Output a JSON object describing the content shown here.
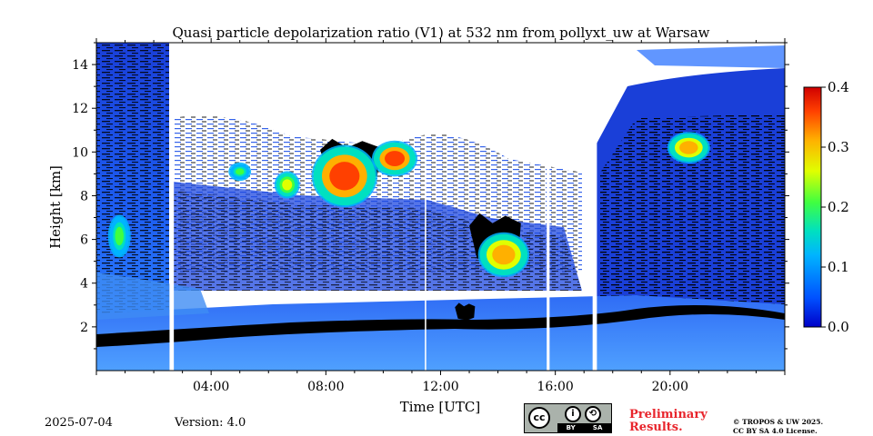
{
  "chart_data": {
    "type": "heatmap",
    "title": "Quasi particle depolarization ratio (V1) at 532 nm from pollyxt_uw at Warsaw",
    "xlabel": "Time [UTC]",
    "ylabel": "Height [km]",
    "xlim": [
      0,
      24
    ],
    "ylim": [
      0,
      15
    ],
    "x_ticks": [
      {
        "value": 4,
        "label": "04:00"
      },
      {
        "value": 8,
        "label": "08:00"
      },
      {
        "value": 12,
        "label": "12:00"
      },
      {
        "value": 16,
        "label": "16:00"
      },
      {
        "value": 20,
        "label": "20:00"
      }
    ],
    "y_ticks": [
      {
        "value": 2,
        "label": "2"
      },
      {
        "value": 4,
        "label": "4"
      },
      {
        "value": 6,
        "label": "6"
      },
      {
        "value": 8,
        "label": "8"
      },
      {
        "value": 10,
        "label": "10"
      },
      {
        "value": 12,
        "label": "12"
      },
      {
        "value": 14,
        "label": "14"
      }
    ],
    "colorbar": {
      "min": 0.0,
      "max": 0.4,
      "ticks": [
        "0.0",
        "0.1",
        "0.2",
        "0.3",
        "0.4"
      ],
      "colormap": "jet",
      "colors": [
        "#0000c8",
        "#0050ff",
        "#00b4ff",
        "#00e0c0",
        "#40ff40",
        "#e0ff00",
        "#ffb000",
        "#ff4000",
        "#d00000"
      ]
    },
    "legend": "none",
    "grid": false,
    "no_data_gaps": [
      [
        2.55,
        2.7
      ],
      [
        11.45,
        11.5
      ],
      [
        15.7,
        15.8
      ],
      [
        17.3,
        17.45
      ]
    ],
    "features": [
      {
        "t0": 0.5,
        "t1": 1.1,
        "h0": 5.3,
        "h1": 7.0,
        "value": 0.2
      },
      {
        "t0": 4.7,
        "t1": 5.3,
        "h0": 8.8,
        "h1": 9.4,
        "value": 0.2
      },
      {
        "t0": 6.3,
        "t1": 7.0,
        "h0": 8.0,
        "h1": 9.0,
        "value": 0.25
      },
      {
        "t0": 7.6,
        "t1": 9.7,
        "h0": 7.6,
        "h1": 10.2,
        "value": 0.35
      },
      {
        "t0": 9.7,
        "t1": 11.1,
        "h0": 9.0,
        "h1": 10.4,
        "value": 0.35
      },
      {
        "t0": 13.4,
        "t1": 15.0,
        "h0": 4.4,
        "h1": 6.2,
        "value": 0.32
      },
      {
        "t0": 20.0,
        "t1": 21.3,
        "h0": 9.6,
        "h1": 10.8,
        "value": 0.3
      }
    ],
    "dark_regions": [
      {
        "t0": 7.8,
        "t1": 9.9,
        "h0": 8.6,
        "h1": 10.6
      },
      {
        "t0": 13.0,
        "t1": 14.8,
        "h0": 4.9,
        "h1": 7.2
      },
      {
        "t0": 12.5,
        "t1": 13.2,
        "h0": 2.3,
        "h1": 3.1
      }
    ]
  },
  "footer": {
    "date": "2025-07-04",
    "version": "Version: 4.0",
    "preliminary_line1": "Preliminary",
    "preliminary_line2": "Results.",
    "preliminary_color": "#e8252c",
    "copyright_line1": "© TROPOS & UW 2025.",
    "copyright_line2": "CC BY SA 4.0 License.",
    "license_badge": {
      "main": "cc",
      "left": "BY",
      "right": "SA"
    }
  }
}
